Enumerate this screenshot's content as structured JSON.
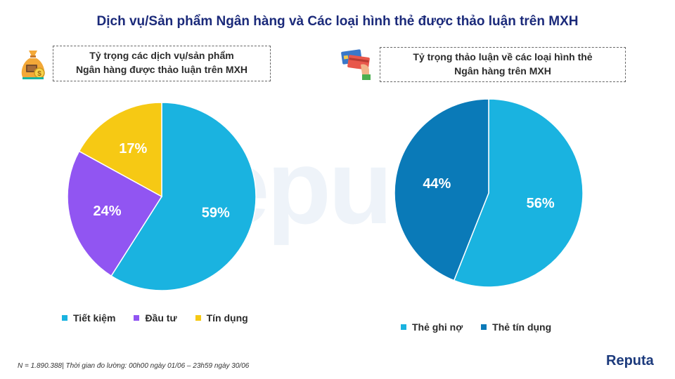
{
  "title": "Dịch vụ/Sản phẩm Ngân hàng và Các loại hình thẻ được thảo luận trên MXH",
  "footnote": "N = 1.890.388| Thời gian đo lường: 00h00 ngày 01/06 – 23h59 ngày 30/06",
  "logo_text": "Reputa",
  "watermark_text": "Reputa",
  "icons": {
    "left": "money-bag-icon",
    "right": "credit-card-hand-icon"
  },
  "colors": {
    "title": "#1b2a7a",
    "light_blue": "#1ab3e0",
    "dark_blue": "#0a7ab8",
    "purple": "#9155f2",
    "yellow": "#f6c914"
  },
  "chart_data": [
    {
      "type": "pie",
      "title_line1": "Tỷ trọng các dịch vụ/sản phẩm",
      "title_line2": "Ngân hàng được thảo luận trên MXH",
      "categories": [
        "Tiết kiệm",
        "Đầu tư",
        "Tín dụng"
      ],
      "values": [
        59,
        24,
        17
      ],
      "labels": [
        "59%",
        "24%",
        "17%"
      ],
      "colors": [
        "#1ab3e0",
        "#9155f2",
        "#f6c914"
      ],
      "legend_position": "bottom"
    },
    {
      "type": "pie",
      "title_line1": "Tỷ trọng thảo luận về các loại hình thẻ",
      "title_line2": "Ngân hàng trên MXH",
      "categories": [
        "Thẻ ghi nợ",
        "Thẻ tín dụng"
      ],
      "values": [
        56,
        44
      ],
      "labels": [
        "56%",
        "44%"
      ],
      "colors": [
        "#1ab3e0",
        "#0a7ab8"
      ],
      "legend_position": "bottom"
    }
  ]
}
